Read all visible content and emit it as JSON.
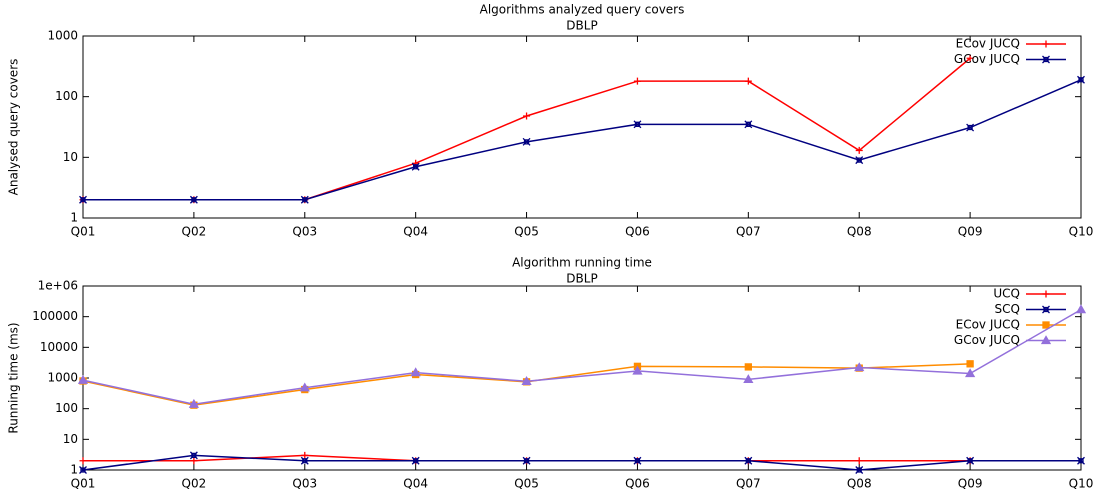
{
  "chart_data": [
    {
      "type": "line",
      "title": "Algorithms analyzed query covers",
      "subtitle": "DBLP",
      "y_label": "Analysed query covers",
      "categories": [
        "Q01",
        "Q02",
        "Q03",
        "Q04",
        "Q05",
        "Q06",
        "Q07",
        "Q08",
        "Q09",
        "Q10"
      ],
      "log_scale": true,
      "legend": "top-right",
      "grid": false,
      "ylim": [
        1,
        1000
      ],
      "yticks": [
        1,
        10,
        100,
        1000
      ],
      "series": [
        {
          "name": "ECov JUCQ",
          "color": "#ff0000",
          "values": [
            2,
            2,
            2,
            8,
            48,
            180,
            180,
            13,
            430,
            null
          ]
        },
        {
          "name": "GCov JUCQ",
          "color": "#000080",
          "values": [
            2,
            2,
            2,
            7,
            18,
            35,
            35,
            9,
            31,
            190
          ]
        }
      ]
    },
    {
      "type": "line",
      "title": "Algorithm running time",
      "subtitle": "DBLP",
      "y_label": "Running time (ms)",
      "categories": [
        "Q01",
        "Q02",
        "Q03",
        "Q04",
        "Q05",
        "Q06",
        "Q07",
        "Q08",
        "Q09",
        "Q10"
      ],
      "log_scale": true,
      "legend": "top-right",
      "grid": false,
      "ylim": [
        1,
        1000000
      ],
      "yticks": [
        1,
        10,
        100,
        1000,
        10000,
        100000,
        {
          "value": 1000000,
          "label": "1e+06"
        }
      ],
      "series": [
        {
          "name": "UCQ",
          "color": "#ff0000",
          "values": [
            2,
            2,
            3,
            2,
            2,
            2,
            2,
            2,
            2,
            null
          ]
        },
        {
          "name": "SCQ",
          "color": "#000080",
          "values": [
            1,
            3,
            2,
            2,
            2,
            2,
            2,
            1,
            2,
            2
          ]
        },
        {
          "name": "ECov JUCQ",
          "color": "#ff8c00",
          "values": [
            800,
            130,
            420,
            1300,
            750,
            2400,
            2300,
            2100,
            2900,
            null
          ]
        },
        {
          "name": "GCov JUCQ",
          "color": "#9370db",
          "values": [
            850,
            140,
            480,
            1500,
            780,
            1700,
            900,
            2200,
            1400,
            170000
          ]
        }
      ]
    }
  ]
}
